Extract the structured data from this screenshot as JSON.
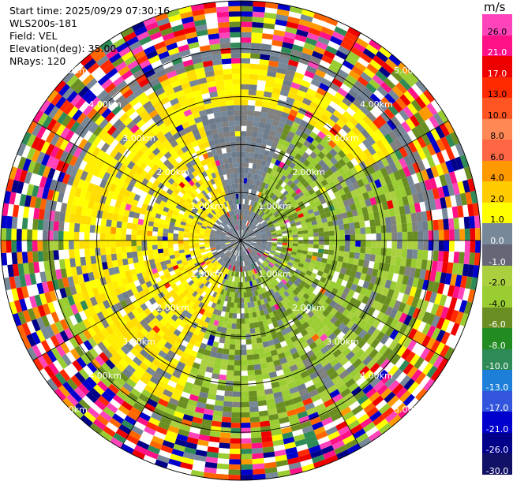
{
  "header": {
    "start_time": "Start time: 2025/09/29 07:30:16",
    "instrument": "WLS200s-181",
    "field": "Field: VEL",
    "elevation": "Elevation(deg): 35.00",
    "nrays": "NRays: 120"
  },
  "colorbar": {
    "unit": "m/s",
    "ticks": [
      "26.0",
      "21.0",
      "17.0",
      "13.0",
      "10.0",
      "8.0",
      "6.0",
      "4.0",
      "2.0",
      "1.0",
      "0.0",
      "-1.0",
      "-2.0",
      "-4.0",
      "-6.0",
      "-8.0",
      "-10.0",
      "-13.0",
      "-17.0",
      "-21.0",
      "-26.0",
      "-30.0"
    ],
    "colors": [
      "#ff44bb",
      "#ff1188",
      "#ee0000",
      "#ff2a00",
      "#ff5522",
      "#ff8855",
      "#ff6644",
      "#ff9900",
      "#ffcc00",
      "#ffff00",
      "#778899",
      "#666677",
      "#aad040",
      "#9acd32",
      "#6b8e23",
      "#228b22",
      "#2e8b57",
      "#1e7fd8",
      "#3355dd",
      "#0000cc",
      "#000088",
      "#111166"
    ]
  },
  "chart_data": {
    "type": "ppi",
    "field": "VEL",
    "units": "m/s",
    "elevation_deg": 35.0,
    "n_rays": 120,
    "range_rings_km": [
      1.0,
      2.0,
      3.0,
      4.0,
      5.0
    ],
    "range_ring_labels": [
      "1.00km",
      "2.00km",
      "3.00km",
      "4.00km",
      "5.00km"
    ],
    "max_range_km": 5.0
  }
}
